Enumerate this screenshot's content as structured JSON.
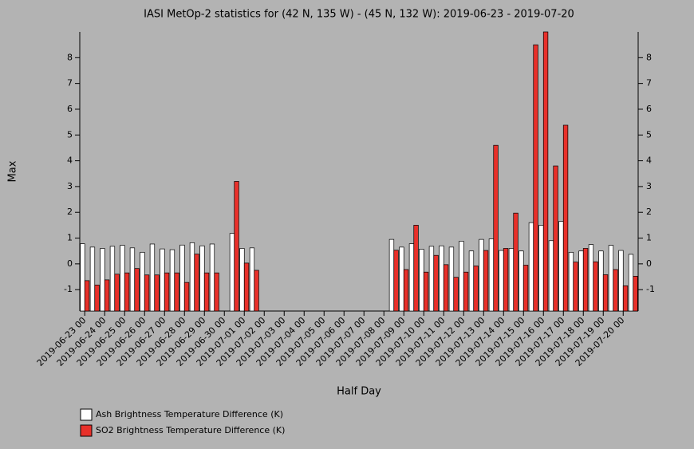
{
  "chart_data": {
    "type": "bar",
    "title": "IASI MetOp-2 statistics for (42 N, 135 W) - (45 N, 132 W): 2019-06-23 - 2019-07-20",
    "xlabel": "Half Day",
    "ylabel": "Max",
    "categories": [
      "2019-06-23 00",
      null,
      "2019-06-24 00",
      null,
      "2019-06-25 00",
      null,
      "2019-06-26 00",
      null,
      "2019-06-27 00",
      null,
      "2019-06-28 00",
      null,
      "2019-06-29 00",
      null,
      "2019-06-30 00",
      null,
      "2019-07-01 00",
      null,
      "2019-07-02 00",
      null,
      "2019-07-03 00",
      null,
      "2019-07-04 00",
      null,
      "2019-07-05 00",
      null,
      "2019-07-06 00",
      null,
      "2019-07-07 00",
      null,
      "2019-07-08 00",
      null,
      "2019-07-09 00",
      null,
      "2019-07-10 00",
      null,
      "2019-07-11 00",
      null,
      "2019-07-12 00",
      null,
      "2019-07-13 00",
      null,
      "2019-07-14 00",
      null,
      "2019-07-15 00",
      null,
      "2019-07-16 00",
      null,
      "2019-07-17 00",
      null,
      "2019-07-18 00",
      null,
      "2019-07-19 00",
      null,
      "2019-07-20 00",
      null
    ],
    "series": [
      {
        "name": "Ash Brightness Temperature Difference (K)",
        "color": "#ffffff",
        "values": [
          0.78,
          0.65,
          0.6,
          0.68,
          0.72,
          0.62,
          0.45,
          0.77,
          0.58,
          0.55,
          0.73,
          0.82,
          0.7,
          0.77,
          null,
          1.18,
          0.6,
          0.62,
          null,
          null,
          null,
          null,
          null,
          null,
          null,
          null,
          null,
          null,
          null,
          null,
          null,
          0.95,
          0.65,
          0.78,
          0.57,
          0.68,
          0.7,
          0.65,
          0.88,
          0.5,
          0.95,
          0.97,
          0.52,
          0.6,
          0.5,
          1.6,
          1.5,
          0.9,
          1.65,
          0.45,
          0.5,
          0.75,
          0.5,
          0.72,
          0.52,
          0.37
        ]
      },
      {
        "name": "SO2 Brightness Temperature Difference (K)",
        "color": "#e8302a",
        "values": [
          -0.65,
          -0.82,
          -0.62,
          -0.4,
          -0.35,
          -0.18,
          -0.43,
          -0.43,
          -0.35,
          -0.35,
          -0.72,
          0.38,
          -0.35,
          -0.35,
          null,
          3.2,
          0.03,
          -0.25,
          null,
          null,
          null,
          null,
          null,
          null,
          null,
          null,
          null,
          null,
          null,
          null,
          null,
          0.53,
          -0.22,
          1.5,
          -0.32,
          0.33,
          -0.03,
          -0.52,
          -0.32,
          -0.08,
          0.52,
          4.6,
          0.6,
          1.97,
          -0.05,
          8.5,
          9.0,
          3.8,
          5.38,
          0.07,
          0.6,
          0.08,
          -0.42,
          -0.22,
          -0.85,
          -0.48
        ]
      }
    ],
    "ylim": [
      -1.83,
      9.0
    ],
    "yticks": [
      -1,
      0,
      1,
      2,
      3,
      4,
      5,
      6,
      7,
      8
    ]
  }
}
